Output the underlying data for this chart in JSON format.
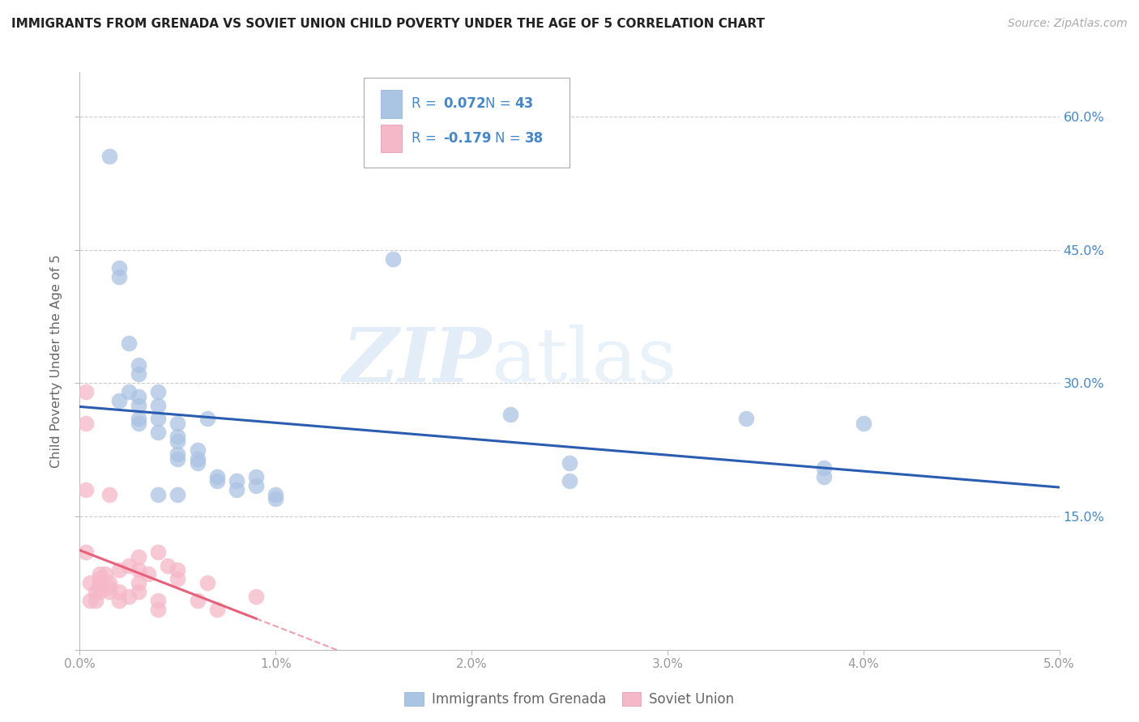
{
  "title": "IMMIGRANTS FROM GRENADA VS SOVIET UNION CHILD POVERTY UNDER THE AGE OF 5 CORRELATION CHART",
  "source": "Source: ZipAtlas.com",
  "ylabel": "Child Poverty Under the Age of 5",
  "xlim": [
    0.0,
    0.05
  ],
  "ylim": [
    0.0,
    0.65
  ],
  "xticks": [
    0.0,
    0.01,
    0.02,
    0.03,
    0.04,
    0.05
  ],
  "xticklabels": [
    "0.0%",
    "1.0%",
    "2.0%",
    "3.0%",
    "4.0%",
    "5.0%"
  ],
  "yticks": [
    0.0,
    0.15,
    0.3,
    0.45,
    0.6
  ],
  "yticklabels_right": [
    "",
    "15.0%",
    "30.0%",
    "45.0%",
    "60.0%"
  ],
  "blue_color": "#aac4e3",
  "pink_color": "#f5b8c8",
  "blue_line_color": "#2a5db0",
  "pink_line_color": "#e8607a",
  "grid_color": "#cccccc",
  "watermark_zip": "ZIP",
  "watermark_atlas": "atlas",
  "blue_x": [
    0.0015,
    0.002,
    0.002,
    0.002,
    0.0025,
    0.0025,
    0.003,
    0.003,
    0.003,
    0.003,
    0.003,
    0.003,
    0.004,
    0.004,
    0.004,
    0.004,
    0.004,
    0.005,
    0.005,
    0.005,
    0.005,
    0.005,
    0.005,
    0.006,
    0.006,
    0.006,
    0.0065,
    0.007,
    0.007,
    0.008,
    0.008,
    0.009,
    0.009,
    0.01,
    0.01,
    0.016,
    0.022,
    0.025,
    0.025,
    0.034,
    0.038,
    0.038,
    0.04
  ],
  "blue_y": [
    0.555,
    0.42,
    0.43,
    0.28,
    0.29,
    0.345,
    0.255,
    0.275,
    0.285,
    0.32,
    0.26,
    0.31,
    0.245,
    0.26,
    0.275,
    0.29,
    0.175,
    0.235,
    0.24,
    0.255,
    0.215,
    0.22,
    0.175,
    0.21,
    0.215,
    0.225,
    0.26,
    0.19,
    0.195,
    0.18,
    0.19,
    0.185,
    0.195,
    0.17,
    0.175,
    0.44,
    0.265,
    0.19,
    0.21,
    0.26,
    0.195,
    0.205,
    0.255
  ],
  "pink_x": [
    0.0003,
    0.0003,
    0.0003,
    0.0003,
    0.0005,
    0.0005,
    0.0008,
    0.0008,
    0.001,
    0.001,
    0.001,
    0.001,
    0.001,
    0.0013,
    0.0015,
    0.0015,
    0.0015,
    0.0015,
    0.002,
    0.002,
    0.002,
    0.0025,
    0.0025,
    0.003,
    0.003,
    0.003,
    0.003,
    0.0035,
    0.004,
    0.004,
    0.004,
    0.0045,
    0.005,
    0.005,
    0.006,
    0.0065,
    0.007,
    0.009
  ],
  "pink_y": [
    0.29,
    0.255,
    0.18,
    0.11,
    0.055,
    0.075,
    0.065,
    0.055,
    0.065,
    0.07,
    0.075,
    0.08,
    0.085,
    0.085,
    0.065,
    0.07,
    0.075,
    0.175,
    0.055,
    0.065,
    0.09,
    0.06,
    0.095,
    0.065,
    0.075,
    0.09,
    0.105,
    0.085,
    0.045,
    0.055,
    0.11,
    0.095,
    0.08,
    0.09,
    0.055,
    0.075,
    0.045,
    0.06
  ],
  "legend_R1": "R = ",
  "legend_V1": "0.072",
  "legend_N1": "N = ",
  "legend_NV1": "43",
  "legend_R2": "R = ",
  "legend_V2": "-0.179",
  "legend_N2": "N = ",
  "legend_NV2": "38",
  "bottom_label1": "Immigrants from Grenada",
  "bottom_label2": "Soviet Union"
}
